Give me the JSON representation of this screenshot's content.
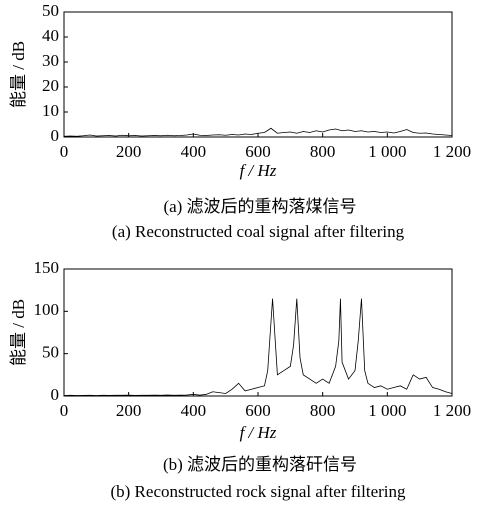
{
  "chart_data": [
    {
      "type": "line",
      "xlabel": "f / Hz",
      "ylabel": "能量 / dB",
      "caption_cn": "(a) 滤波后的重构落煤信号",
      "caption_en": "(a) Reconstructed coal signal after filtering",
      "color": "#000000",
      "x": [
        0,
        20,
        40,
        60,
        80,
        100,
        120,
        140,
        160,
        180,
        200,
        220,
        240,
        260,
        280,
        300,
        320,
        340,
        360,
        380,
        400,
        420,
        440,
        460,
        480,
        500,
        520,
        540,
        560,
        580,
        600,
        620,
        640,
        660,
        680,
        700,
        720,
        740,
        760,
        780,
        800,
        820,
        840,
        860,
        880,
        900,
        920,
        940,
        960,
        980,
        1000,
        1020,
        1040,
        1060,
        1080,
        1100,
        1120,
        1140,
        1160,
        1180,
        1200
      ],
      "values": [
        0.3,
        0.4,
        0.3,
        0.5,
        0.8,
        0.4,
        0.5,
        0.6,
        0.4,
        0.7,
        0.5,
        0.6,
        0.4,
        0.5,
        0.6,
        0.5,
        0.7,
        0.5,
        0.6,
        0.8,
        1.2,
        0.7,
        0.6,
        0.8,
        0.9,
        0.7,
        1.0,
        0.8,
        1.2,
        1.0,
        1.5,
        1.8,
        3.5,
        1.5,
        1.8,
        2.0,
        1.5,
        2.2,
        1.8,
        2.5,
        2.0,
        2.8,
        3.2,
        2.5,
        2.8,
        2.2,
        2.5,
        2.0,
        2.2,
        1.8,
        2.0,
        1.6,
        2.2,
        3.0,
        1.8,
        1.5,
        1.6,
        1.2,
        1.0,
        0.8,
        0.6
      ],
      "xlim": [
        0,
        1200
      ],
      "ylim": [
        0,
        50
      ],
      "xticks": [
        0,
        200,
        400,
        600,
        800,
        {
          "value": 1000,
          "label": "1 000"
        },
        {
          "value": 1200,
          "label": "1 200"
        }
      ],
      "yticks": [
        0,
        10,
        20,
        30,
        40,
        50
      ]
    },
    {
      "type": "line",
      "xlabel": "f / Hz",
      "ylabel": "能量 / dB",
      "caption_cn": "(b) 滤波后的重构落矸信号",
      "caption_en": "(b) Reconstructed rock signal after filtering",
      "color": "#000000",
      "x": [
        0,
        20,
        40,
        60,
        80,
        100,
        120,
        140,
        160,
        180,
        200,
        220,
        240,
        260,
        280,
        300,
        320,
        340,
        360,
        380,
        400,
        420,
        440,
        460,
        480,
        500,
        520,
        540,
        560,
        580,
        600,
        620,
        630,
        645,
        660,
        680,
        700,
        710,
        720,
        730,
        740,
        760,
        780,
        800,
        820,
        840,
        850,
        855,
        860,
        880,
        900,
        910,
        920,
        930,
        940,
        960,
        980,
        1000,
        1020,
        1040,
        1060,
        1080,
        1100,
        1120,
        1140,
        1160,
        1180,
        1200
      ],
      "values": [
        0.5,
        0.8,
        0.6,
        0.7,
        0.9,
        0.6,
        0.8,
        0.7,
        0.9,
        0.8,
        1,
        0.7,
        0.9,
        0.8,
        1,
        0.9,
        1.1,
        0.8,
        1,
        1.2,
        2,
        1,
        2,
        5,
        4,
        3,
        8,
        15,
        6,
        8,
        10,
        12,
        30,
        115,
        25,
        30,
        35,
        60,
        115,
        45,
        25,
        20,
        15,
        20,
        15,
        35,
        65,
        115,
        40,
        20,
        30,
        65,
        115,
        30,
        15,
        10,
        12,
        8,
        10,
        12,
        8,
        25,
        20,
        22,
        10,
        8,
        5,
        3
      ],
      "xlim": [
        0,
        1200
      ],
      "ylim": [
        0,
        150
      ],
      "xticks": [
        0,
        200,
        400,
        600,
        800,
        {
          "value": 1000,
          "label": "1 000"
        },
        {
          "value": 1200,
          "label": "1 200"
        }
      ],
      "yticks": [
        0,
        50,
        100,
        150
      ]
    }
  ]
}
